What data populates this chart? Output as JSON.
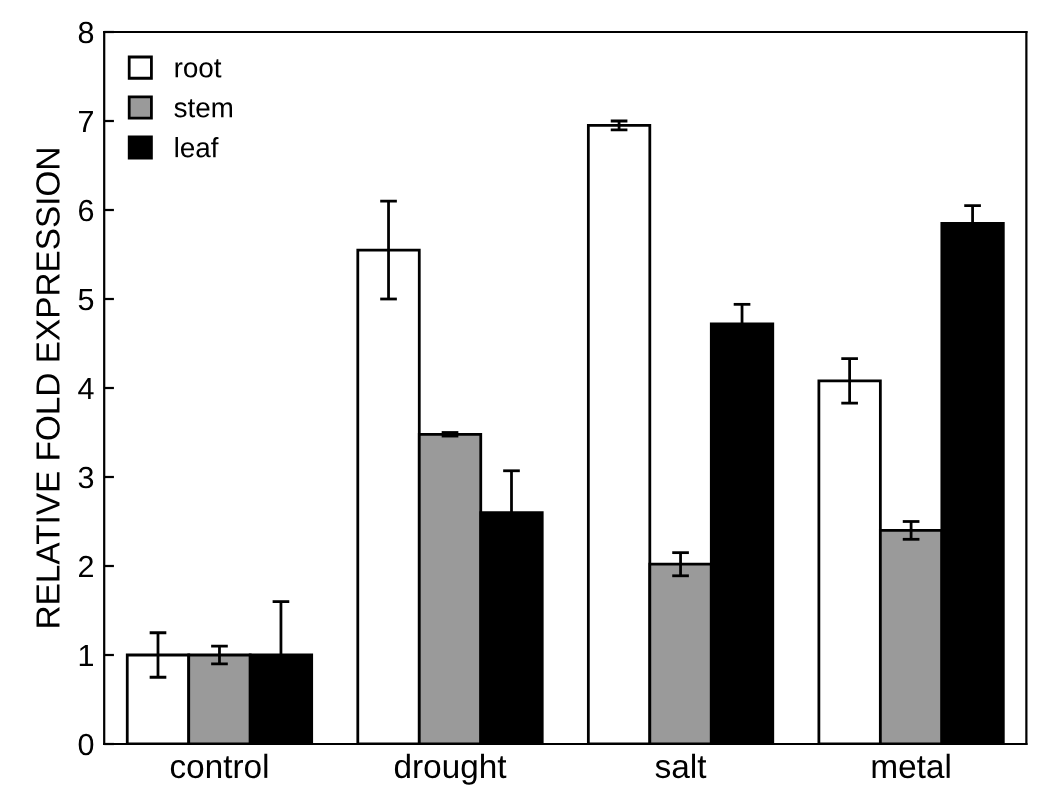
{
  "chart_data": {
    "type": "bar",
    "ylabel": "RELATIVE FOLD EXPRESSION",
    "categories": [
      "control",
      "drought",
      "salt",
      "metal"
    ],
    "series": [
      {
        "name": "root",
        "color": "#ffffff",
        "values": [
          1.0,
          5.55,
          6.95,
          4.08
        ],
        "errors": [
          0.25,
          0.55,
          0.05,
          0.25
        ]
      },
      {
        "name": "stem",
        "color": "#9a9a9a",
        "values": [
          1.0,
          3.48,
          2.02,
          2.4
        ],
        "errors": [
          0.1,
          0.02,
          0.13,
          0.1
        ]
      },
      {
        "name": "leaf",
        "color": "#000000",
        "values": [
          1.0,
          2.6,
          4.72,
          5.85
        ],
        "errors": [
          0.6,
          0.47,
          0.22,
          0.2
        ]
      }
    ],
    "ylim": [
      0,
      8
    ],
    "yticks": [
      0,
      1,
      2,
      3,
      4,
      5,
      6,
      7,
      8
    ],
    "grid": false,
    "legend": "top left"
  }
}
